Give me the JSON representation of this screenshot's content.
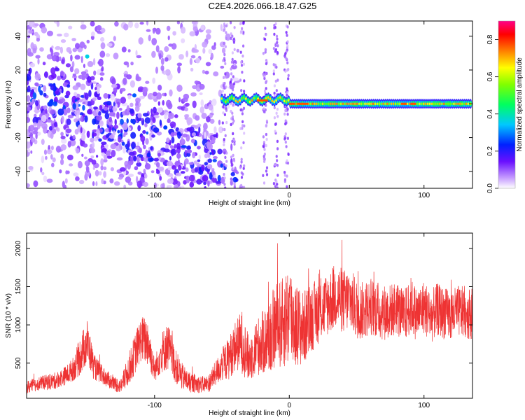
{
  "page": {
    "title": "C2E4.2026.066.18.47.G25"
  },
  "chart_data": [
    {
      "type": "heatmap",
      "title": "",
      "xlabel": "Height of straight line (km)",
      "ylabel": "Frequency (Hz)",
      "xlim": [
        -195,
        136
      ],
      "ylim": [
        -50,
        49
      ],
      "x_ticks": [
        {
          "value": -100,
          "label": "-100"
        },
        {
          "value": 0,
          "label": "0"
        },
        {
          "value": 100,
          "label": "100"
        }
      ],
      "y_ticks": [
        {
          "value": 40,
          "label": "40"
        },
        {
          "value": 20,
          "label": "20"
        },
        {
          "value": 0,
          "label": "0"
        },
        {
          "value": -20,
          "label": "-20"
        },
        {
          "value": -40,
          "label": "-40"
        }
      ],
      "colorbar": {
        "label": "Normalized spectral amplitude",
        "range": [
          0,
          0.9
        ],
        "ticks": [
          {
            "value": 0.0,
            "label": "0.0"
          },
          {
            "value": 0.2,
            "label": "0.2"
          },
          {
            "value": 0.4,
            "label": "0.4"
          },
          {
            "value": 0.6,
            "label": "0.6"
          },
          {
            "value": 0.8,
            "label": "0.8"
          }
        ],
        "colormap": "rainbow"
      },
      "features": {
        "dominant_line_frequency_hz": 0,
        "dominant_line_from_height_km": -50,
        "dominant_line_to_height_km": 136,
        "scatter_region_height_km": [
          -195,
          -45
        ],
        "scatter_region_frequency_hz": [
          -50,
          49
        ]
      }
    },
    {
      "type": "line",
      "title": "",
      "xlabel": "Height of straight line (km)",
      "ylabel": "SNR (10 * v/v)",
      "xlim": [
        -195,
        136
      ],
      "ylim": [
        40,
        2200
      ],
      "x_ticks": [
        {
          "value": -100,
          "label": "-100"
        },
        {
          "value": 0,
          "label": "0"
        },
        {
          "value": 100,
          "label": "100"
        }
      ],
      "y_ticks": [
        {
          "value": 500,
          "label": "500"
        },
        {
          "value": 1000,
          "label": "1000"
        },
        {
          "value": 1500,
          "label": "1500"
        },
        {
          "value": 2000,
          "label": "2000"
        }
      ],
      "series": [
        {
          "color": "#ee3333",
          "x": [
            -195,
            -185,
            -175,
            -170,
            -165,
            -160,
            -155,
            -150,
            -145,
            -140,
            -135,
            -130,
            -125,
            -120,
            -115,
            -110,
            -105,
            -100,
            -95,
            -90,
            -85,
            -80,
            -75,
            -70,
            -65,
            -60,
            -55,
            -50,
            -45,
            -40,
            -35,
            -30,
            -25,
            -20,
            -15,
            -10,
            -5,
            0,
            5,
            10,
            15,
            20,
            25,
            30,
            35,
            40,
            45,
            50,
            55,
            60,
            65,
            70,
            75,
            80,
            85,
            90,
            95,
            100,
            105,
            110,
            115,
            120,
            125,
            130,
            136
          ],
          "y": [
            180,
            240,
            260,
            300,
            350,
            430,
            600,
            780,
            450,
            360,
            290,
            230,
            200,
            380,
            600,
            820,
            780,
            400,
            640,
            720,
            480,
            330,
            260,
            230,
            220,
            230,
            360,
            480,
            560,
            730,
            780,
            540,
            700,
            760,
            840,
            990,
            1020,
            1150,
            1000,
            950,
            1060,
            1160,
            1220,
            1300,
            1390,
            1300,
            1340,
            1200,
            1180,
            1250,
            1200,
            1160,
            1180,
            1220,
            1100,
            1260,
            1130,
            1240,
            1100,
            1200,
            1150,
            1120,
            1180,
            1160,
            1150
          ],
          "noise_amplitude": [
            90,
            90,
            110,
            110,
            130,
            160,
            260,
            300,
            170,
            130,
            110,
            100,
            100,
            190,
            260,
            300,
            330,
            150,
            270,
            320,
            230,
            180,
            140,
            120,
            110,
            120,
            160,
            220,
            280,
            330,
            420,
            300,
            370,
            420,
            500,
            560,
            600,
            700,
            560,
            500,
            460,
            440,
            420,
            420,
            440,
            430,
            420,
            400,
            380,
            380,
            380,
            370,
            360,
            360,
            350,
            380,
            350,
            360,
            350,
            350,
            340,
            340,
            340,
            340,
            340
          ]
        }
      ]
    }
  ]
}
